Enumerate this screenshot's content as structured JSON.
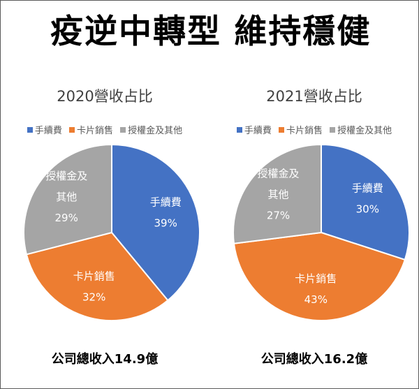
{
  "title": "疫逆中轉型 維持穩健",
  "chart_data": [
    {
      "type": "pie",
      "title": "2020營收占比",
      "legend": [
        "手續費",
        "卡片銷售",
        "授權金及其他"
      ],
      "slices": [
        {
          "label": "手續費",
          "label_lines": [
            "手續費"
          ],
          "value": 39,
          "display": "39%",
          "color": "#4472c4"
        },
        {
          "label": "卡片銷售",
          "label_lines": [
            "卡片銷售"
          ],
          "value": 32,
          "display": "32%",
          "color": "#ed7d31"
        },
        {
          "label": "授權金及其他",
          "label_lines": [
            "授權金及",
            "其他"
          ],
          "value": 29,
          "display": "29%",
          "color": "#a5a5a5"
        }
      ],
      "legend_position": "top",
      "caption": "公司總收入14.9億"
    },
    {
      "type": "pie",
      "title": "2021營收占比",
      "legend": [
        "手續費",
        "卡片銷售",
        "授權金及其他"
      ],
      "slices": [
        {
          "label": "手續費",
          "label_lines": [
            "手續費"
          ],
          "value": 30,
          "display": "30%",
          "color": "#4472c4"
        },
        {
          "label": "卡片銷售",
          "label_lines": [
            "卡片銷售"
          ],
          "value": 43,
          "display": "43%",
          "color": "#ed7d31"
        },
        {
          "label": "授權金及其他",
          "label_lines": [
            "授權金及",
            "其他"
          ],
          "value": 27,
          "display": "27%",
          "color": "#a5a5a5"
        }
      ],
      "legend_position": "top",
      "caption": "公司總收入16.2億"
    }
  ]
}
